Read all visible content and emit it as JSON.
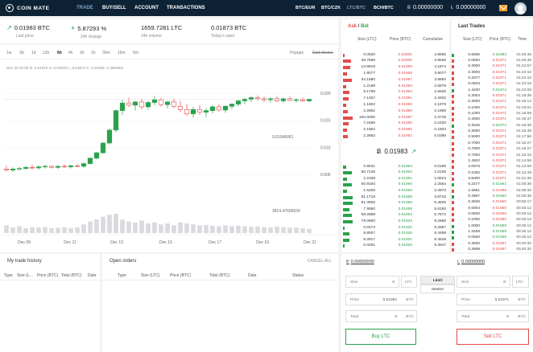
{
  "nav": {
    "logo": "COIN MATE",
    "links": [
      "TRADE",
      "BUY/SELL",
      "ACCOUNT",
      "TRANSACTIONS"
    ],
    "pairs": [
      "BTC/EUR",
      "BTC/CZK",
      "LTC/BTC",
      "BCH/BTC"
    ],
    "balance1": "0.00000000",
    "balance2": "0.00000000"
  },
  "stats": {
    "last_price": "0.01983 BTC",
    "last_price_label": "Last price",
    "change": "5.87293 %",
    "change_label": "24h change",
    "volume": "1659.7281 LTC",
    "volume_label": "24h volume",
    "open": "0.01873 BTC",
    "open_label": "Today's open"
  },
  "chart": {
    "timeframes": [
      "1w",
      "3d",
      "1d",
      "12h",
      "6h",
      "4h",
      "2h",
      "1h",
      "30m",
      "15m",
      "5m"
    ],
    "active_timeframe": "6h",
    "popups": "Popups",
    "dark_theme": "Dark theme",
    "ohlc": "Dec 20    02:00    O. 0.01970    H. 0.01970    L. 0.01874    C. 0.01945    -1.28025%",
    "current_label": "0.01949061",
    "volume_label": "3814.47655634"
  },
  "chart_data": {
    "type": "candlestick",
    "y_ticks": [
      "0.020",
      "0.015",
      "0.010",
      "0.005"
    ],
    "x_ticks": [
      "Dec 09",
      "Dec 11",
      "Dec 13",
      "Dec 15",
      "Dec 17",
      "Dec 19",
      "Dec 21"
    ],
    "ylim": [
      0.0001,
      0.0215
    ],
    "candles": [
      [
        0.006,
        0.0066,
        0.0055,
        0.0058
      ],
      [
        0.0058,
        0.0063,
        0.0055,
        0.006
      ],
      [
        0.006,
        0.0064,
        0.0057,
        0.0061
      ],
      [
        0.0061,
        0.0066,
        0.0058,
        0.0063
      ],
      [
        0.0063,
        0.0068,
        0.006,
        0.0062
      ],
      [
        0.0062,
        0.0067,
        0.0059,
        0.0064
      ],
      [
        0.0064,
        0.0068,
        0.0061,
        0.0065
      ],
      [
        0.0065,
        0.0067,
        0.0061,
        0.0063
      ],
      [
        0.0063,
        0.0067,
        0.006,
        0.0065
      ],
      [
        0.0065,
        0.0069,
        0.0062,
        0.0064
      ],
      [
        0.0064,
        0.0068,
        0.0061,
        0.0066
      ],
      [
        0.0066,
        0.007,
        0.0063,
        0.0065
      ],
      [
        0.0065,
        0.0072,
        0.0062,
        0.007
      ],
      [
        0.007,
        0.0081,
        0.0068,
        0.008
      ],
      [
        0.008,
        0.0092,
        0.0078,
        0.009
      ],
      [
        0.009,
        0.011,
        0.0088,
        0.0108
      ],
      [
        0.0108,
        0.0135,
        0.0105,
        0.0132
      ],
      [
        0.0132,
        0.017,
        0.0128,
        0.0168
      ],
      [
        0.0168,
        0.0188,
        0.016,
        0.0182
      ],
      [
        0.0182,
        0.0192,
        0.0175,
        0.0178
      ],
      [
        0.0178,
        0.0186,
        0.0168,
        0.0184
      ],
      [
        0.0184,
        0.019,
        0.017,
        0.0175
      ],
      [
        0.0175,
        0.0186,
        0.017,
        0.0183
      ],
      [
        0.0183,
        0.0195,
        0.0178,
        0.0188
      ],
      [
        0.0188,
        0.0192,
        0.0176,
        0.0179
      ],
      [
        0.0179,
        0.0186,
        0.0172,
        0.0184
      ],
      [
        0.0184,
        0.019,
        0.0172,
        0.0176
      ],
      [
        0.0176,
        0.0186,
        0.0165,
        0.017
      ],
      [
        0.017,
        0.018,
        0.0158,
        0.0162
      ],
      [
        0.0162,
        0.0175,
        0.0155,
        0.017
      ],
      [
        0.017,
        0.0178,
        0.016,
        0.0165
      ],
      [
        0.0165,
        0.0172,
        0.0156,
        0.0168
      ],
      [
        0.0168,
        0.0178,
        0.0163,
        0.0175
      ],
      [
        0.0175,
        0.018,
        0.0166,
        0.0169
      ],
      [
        0.0169,
        0.0178,
        0.0164,
        0.0176
      ],
      [
        0.0176,
        0.0182,
        0.017,
        0.018
      ],
      [
        0.018,
        0.0188,
        0.0176,
        0.0186
      ],
      [
        0.0186,
        0.0192,
        0.018,
        0.0189
      ],
      [
        0.0189,
        0.0195,
        0.0184,
        0.0192
      ],
      [
        0.0192,
        0.0196,
        0.0186,
        0.019
      ],
      [
        0.019,
        0.0194,
        0.0184,
        0.0188
      ],
      [
        0.0188,
        0.0193,
        0.0183,
        0.019
      ],
      [
        0.019,
        0.0195,
        0.0184,
        0.0186
      ],
      [
        0.0186,
        0.0192,
        0.0182,
        0.019
      ],
      [
        0.019,
        0.0194,
        0.0185,
        0.0187
      ],
      [
        0.0187,
        0.0191,
        0.0183,
        0.0188
      ],
      [
        0.0188,
        0.0192,
        0.0184,
        0.0186
      ],
      [
        0.0186,
        0.019,
        0.0183,
        0.0189
      ]
    ],
    "volumes": [
      0.4,
      0.3,
      0.35,
      0.25,
      0.3,
      0.28,
      0.32,
      0.25,
      0.27,
      0.3,
      0.26,
      0.29,
      0.45,
      0.6,
      0.7,
      0.85,
      0.95,
      1.0,
      0.7,
      0.6,
      0.55,
      0.65,
      0.5,
      0.55,
      0.45,
      0.5,
      0.4,
      0.55,
      0.5,
      0.45,
      0.4,
      0.42,
      0.38,
      0.35,
      0.4,
      0.36,
      0.38,
      0.35,
      0.32,
      0.34,
      0.3,
      0.28,
      0.33,
      0.3,
      0.27,
      0.29,
      0.25,
      0.22
    ]
  },
  "book": {
    "title_ask": "Ask",
    "title_sep": " / ",
    "title_bid": "Bid",
    "headers": [
      "Size (LTC)",
      "Price (BTC)",
      "Cumulative"
    ],
    "asks": [
      [
        "0.0500",
        "0.02001",
        "4.9655"
      ],
      [
        "38.7566",
        "0.02000",
        "4.9635"
      ],
      [
        "13.9919",
        "0.01999",
        "4.1874"
      ],
      [
        "1.9077",
        "0.01998",
        "3.9077"
      ],
      [
        "64.1580",
        "0.01997",
        "3.8692"
      ],
      [
        "1.2198",
        "0.01993",
        "2.5879"
      ],
      [
        "8.1768",
        "0.01992",
        "2.5636"
      ],
      [
        "7.1457",
        "0.01991",
        "2.3402"
      ],
      [
        "1.1602",
        "0.01990",
        "2.1979"
      ],
      [
        "2.2862",
        "0.01988",
        "2.1998"
      ],
      [
        "100.0000",
        "0.01987",
        "2.3748"
      ],
      [
        "7.2495",
        "0.01986",
        "0.2430"
      ],
      [
        "2.1862",
        "0.01985",
        "0.1834"
      ],
      [
        "2.2862",
        "0.01982",
        "0.0396"
      ]
    ],
    "mid": "0.01983",
    "bids": [
      [
        "0.9631",
        "0.01963",
        "0.0189"
      ],
      [
        "50.7136",
        "0.01962",
        "1.0139"
      ],
      [
        "2.2338",
        "0.01961",
        "1.0624"
      ],
      [
        "60.9184",
        "0.01960",
        "2.2564"
      ],
      [
        "1.5206",
        "0.01959",
        "2.2873"
      ],
      [
        "81.1719",
        "0.01958",
        "3.8716"
      ],
      [
        "81.3906",
        "0.01956",
        "5.4636"
      ],
      [
        "7.9060",
        "0.01955",
        "5.6182"
      ],
      [
        "58.2889",
        "0.01954",
        "6.7572"
      ],
      [
        "79.0800",
        "0.01933",
        "8.2688"
      ],
      [
        "0.0473",
        "0.01932",
        "8.2867"
      ],
      [
        "8.8007",
        "0.01930",
        "8.4498"
      ],
      [
        "8.2817",
        "0.01921",
        "8.4548"
      ],
      [
        "0.0261",
        "0.01920",
        "8.4647"
      ]
    ]
  },
  "trades": {
    "title": "Last Trades",
    "headers": [
      "Size (LTC)",
      "Price (BTC)",
      "Time"
    ],
    "rows": [
      [
        "0.6585",
        "0.01983",
        "01:26:46",
        "g"
      ],
      [
        "0.0500",
        "0.01971",
        "01:26:46",
        "r"
      ],
      [
        "0.3000",
        "0.01971",
        "01:24:57",
        "r"
      ],
      [
        "0.3000",
        "0.01971",
        "01:24:10",
        "r"
      ],
      [
        "0.2077",
        "0.01971",
        "01:24:10",
        "r"
      ],
      [
        "0.0923",
        "0.01971",
        "01:24:10",
        "r"
      ],
      [
        "1.4230",
        "0.01974",
        "01:24:09",
        "g"
      ],
      [
        "0.3004",
        "0.01971",
        "01:19:35",
        "r"
      ],
      [
        "0.3000",
        "0.01971",
        "01:19:14",
        "r"
      ],
      [
        "0.1000",
        "0.01971",
        "01:19:04",
        "r"
      ],
      [
        "0.1000",
        "0.01971",
        "01:18:59",
        "r"
      ],
      [
        "0.4000",
        "0.01971",
        "01:18:47",
        "r"
      ],
      [
        "0.3045",
        "0.01974",
        "01:18:39",
        "g"
      ],
      [
        "0.3000",
        "0.01971",
        "01:18:39",
        "r"
      ],
      [
        "0.5000",
        "0.01971",
        "01:17:56",
        "r"
      ],
      [
        "0.7000",
        "0.01971",
        "01:16:27",
        "r"
      ],
      [
        "0.7000",
        "0.01971",
        "01:16:27",
        "r"
      ],
      [
        "0.7000",
        "0.01971",
        "01:16:10",
        "r"
      ],
      [
        "1.4922",
        "0.01971",
        "01:14:58",
        "r"
      ],
      [
        "4.0576",
        "0.01971",
        "01:13:09",
        "r"
      ],
      [
        "0.1000",
        "0.01971",
        "01:12:49",
        "r"
      ],
      [
        "3.5000",
        "0.01971",
        "01:01:36",
        "r"
      ],
      [
        "6.2477",
        "0.01962",
        "01:00:36",
        "g"
      ],
      [
        "1.6861",
        "0.01969",
        "01:00:36",
        "r"
      ],
      [
        "0.3957",
        "0.01960",
        "01:00:36",
        "g"
      ],
      [
        "0.3940",
        "0.01950",
        "00:50:17",
        "r"
      ],
      [
        "0.5004",
        "0.01950",
        "00:45:12",
        "r"
      ],
      [
        "0.0500",
        "0.01950",
        "00:45:12",
        "r"
      ],
      [
        "0.1000",
        "0.01950",
        "00:45:12",
        "r"
      ],
      [
        "1.0000",
        "0.01959",
        "00:45:12",
        "g"
      ],
      [
        "1.1508",
        "0.01958",
        "00:45:12",
        "g"
      ],
      [
        "0.0500",
        "0.01959",
        "00:45:12",
        "g"
      ],
      [
        "0.3000",
        "0.01957",
        "00:40:32",
        "r"
      ],
      [
        "0.2699",
        "0.01957",
        "00:40:32",
        "r"
      ]
    ]
  },
  "my_trades": {
    "title": "My trade history",
    "headers": [
      "Type",
      "Size (L...",
      "Price (BTC)",
      "Total (BTC)",
      "Date"
    ]
  },
  "open_orders": {
    "title": "Open orders",
    "cancel_all": "CANCEL ALL",
    "headers": [
      "Type",
      "Size (LTC)",
      "Price (BTC)",
      "Total (BTC)",
      "Date",
      "Status"
    ]
  },
  "trade_form": {
    "buy_balance": "0.00000000",
    "sell_balance": "0.00000000",
    "tab_limit": "Limit",
    "tab_market": "Market",
    "buy": {
      "size_label": "Size",
      "size_value": "0",
      "size_unit": "LTC",
      "price_label": "Price",
      "price_value": "0.01982",
      "price_unit": "BTC",
      "total_label": "Total",
      "total_value": "0",
      "total_unit": "BTC",
      "button": "Buy LTC"
    },
    "sell": {
      "size_label": "Size",
      "size_value": "0",
      "size_unit": "LTC",
      "price_label": "Price",
      "price_value": "0.01971",
      "price_unit": "BTC",
      "total_label": "Total",
      "total_value": "0",
      "total_unit": "BTC",
      "button": "Sell LTC"
    }
  },
  "colors": {
    "nav_bg": "#0e2236",
    "up": "#2aa14c",
    "down": "#e24b4b"
  }
}
